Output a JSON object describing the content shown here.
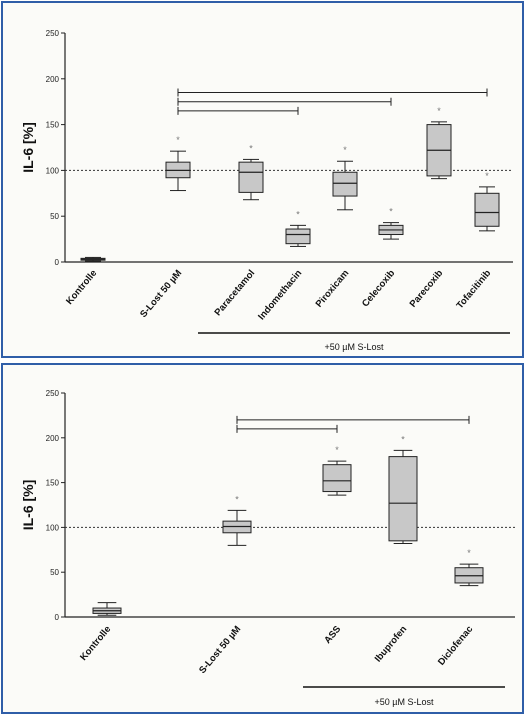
{
  "chart_data": [
    {
      "type": "box",
      "ylabel": "IL-6 [%]",
      "ylim": [
        0,
        250
      ],
      "yticks": [
        "0",
        "50",
        "100",
        "150",
        "200",
        "250"
      ],
      "reference_line": 100,
      "bottom_label": "+50 µM S-Lost",
      "categories": [
        "Kontrolle",
        "S-Lost 50 µM",
        "Paracetamol",
        "Indomethacin",
        "Piroxicam",
        "Celecoxib",
        "Parecoxib",
        "Tofacitinib"
      ],
      "boxes": [
        {
          "min": 1,
          "q1": 2,
          "median": 3,
          "q3": 4,
          "max": 5
        },
        {
          "min": 78,
          "q1": 92,
          "median": 100,
          "q3": 109,
          "max": 121
        },
        {
          "min": 68,
          "q1": 76,
          "median": 98,
          "q3": 109,
          "max": 112
        },
        {
          "min": 17,
          "q1": 20,
          "median": 30,
          "q3": 36,
          "max": 40
        },
        {
          "min": 57,
          "q1": 72,
          "median": 86,
          "q3": 98,
          "max": 110
        },
        {
          "min": 25,
          "q1": 30,
          "median": 35,
          "q3": 40,
          "max": 43
        },
        {
          "min": 91,
          "q1": 94,
          "median": 122,
          "q3": 150,
          "max": 153
        },
        {
          "min": 34,
          "q1": 39,
          "median": 54,
          "q3": 75,
          "max": 82
        }
      ],
      "significance_markers": [
        null,
        "*",
        "*",
        "*",
        "*",
        "*",
        "*",
        "*"
      ],
      "comparison_brackets": [
        {
          "from": 1,
          "to": 3,
          "y": 165
        },
        {
          "from": 1,
          "to": 5,
          "y": 175
        },
        {
          "from": 1,
          "to": 7,
          "y": 185
        }
      ]
    },
    {
      "type": "box",
      "ylabel": "IL-6 [%]",
      "ylim": [
        0,
        250
      ],
      "yticks": [
        "0",
        "50",
        "100",
        "150",
        "200",
        "250"
      ],
      "reference_line": 100,
      "bottom_label": "+50 µM S-Lost",
      "categories": [
        "Kontrolle",
        "S-Lost 50 µM",
        "ASS",
        "Ibuprofen",
        "Diclofenac"
      ],
      "boxes": [
        {
          "min": 2,
          "q1": 4,
          "median": 7,
          "q3": 10,
          "max": 16
        },
        {
          "min": 80,
          "q1": 94,
          "median": 101,
          "q3": 107,
          "max": 119
        },
        {
          "min": 136,
          "q1": 140,
          "median": 152,
          "q3": 170,
          "max": 174
        },
        {
          "min": 82,
          "q1": 85,
          "median": 127,
          "q3": 179,
          "max": 186
        },
        {
          "min": 35,
          "q1": 38,
          "median": 46,
          "q3": 55,
          "max": 59
        }
      ],
      "significance_markers": [
        null,
        "*",
        "*",
        "*",
        "*"
      ],
      "comparison_brackets": [
        {
          "from": 1,
          "to": 2,
          "y": 210
        },
        {
          "from": 1,
          "to": 4,
          "y": 220
        }
      ]
    }
  ]
}
